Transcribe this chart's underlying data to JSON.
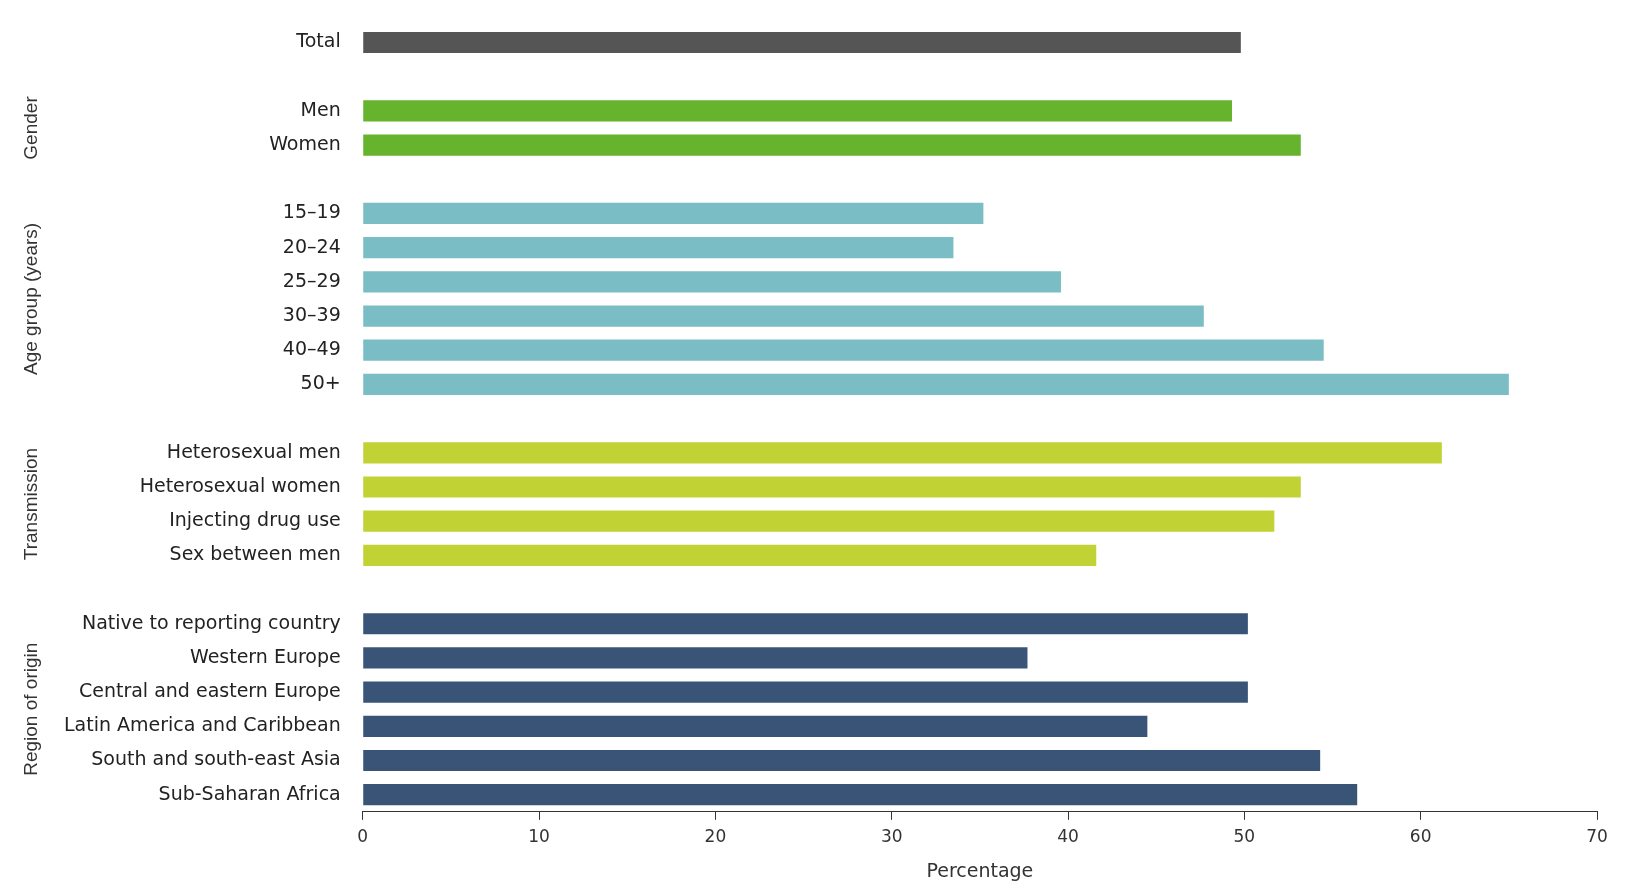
{
  "chart_data": {
    "type": "bar",
    "orientation": "horizontal",
    "xlabel": "Percentage",
    "categories": [
      "Total",
      null,
      "Men",
      "Women",
      null,
      "15–19",
      "20–24",
      "25–29",
      "30–39",
      "40–49",
      "50+",
      null,
      "Heterosexual men",
      "Heterosexual women",
      "Injecting drug use",
      "Sex between men",
      null,
      "Native to reporting country",
      "Western Europe",
      "Central and eastern Europe",
      "Latin America and Caribbean",
      "South and south-east Asia",
      "Sub-Saharan Africa"
    ],
    "values": [
      49.8,
      null,
      49.3,
      53.2,
      null,
      35.2,
      33.5,
      39.6,
      47.7,
      54.5,
      65.0,
      null,
      61.2,
      53.2,
      51.7,
      41.6,
      null,
      50.2,
      37.7,
      50.2,
      44.5,
      54.3,
      56.4
    ],
    "colors": [
      "#555555",
      null,
      "#66b32e",
      "#66b32e",
      null,
      "#7bbdc4",
      "#7bbdc4",
      "#7bbdc4",
      "#7bbdc4",
      "#7bbdc4",
      "#7bbdc4",
      null,
      "#c1d334",
      "#c1d334",
      "#c1d334",
      "#c1d334",
      null,
      "#3a5478",
      "#3a5478",
      "#3a5478",
      "#3a5478",
      "#3a5478",
      "#3a5478"
    ],
    "xlim": [
      0,
      70
    ],
    "xticks": [
      0,
      10,
      20,
      30,
      40,
      50,
      60,
      70
    ],
    "grid": false,
    "legend": false,
    "annotations": [
      "Gender",
      "Age group (years)",
      "Transmission",
      "Region of origin"
    ]
  }
}
